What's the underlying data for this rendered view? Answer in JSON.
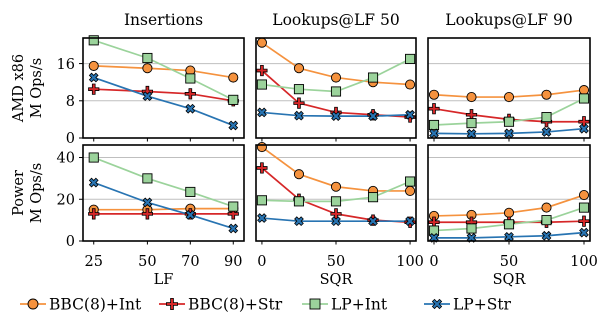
{
  "chart_data": {
    "type": "line",
    "col_titles": [
      "Insertions",
      "Lookups@LF 50",
      "Lookups@LF 90"
    ],
    "row_labels": [
      {
        "line1": "AMD x86",
        "line2": "M Ops/s"
      },
      {
        "line1": "Power",
        "line2": "M Ops/s"
      }
    ],
    "x_axes": [
      {
        "label": "LF",
        "ticks": [
          25,
          50,
          70,
          90
        ],
        "xlim": [
          20,
          95
        ]
      },
      {
        "label": "SQR",
        "ticks": [
          0,
          50,
          100
        ],
        "xlim": [
          -4,
          104
        ]
      },
      {
        "label": "SQR",
        "ticks": [
          0,
          50,
          100
        ],
        "xlim": [
          -4,
          104
        ]
      }
    ],
    "y_axes": [
      {
        "ticks": [
          0,
          8,
          16
        ],
        "ylim": [
          0,
          21.5
        ]
      },
      {
        "ticks": [
          0,
          20,
          40
        ],
        "ylim": [
          0,
          46
        ]
      }
    ],
    "series_meta": [
      {
        "name": "BBC(8)+Int",
        "color": "#f5923e",
        "marker": "circle"
      },
      {
        "name": "BBC(8)+Str",
        "color": "#d62728",
        "marker": "plus"
      },
      {
        "name": "LP+Int",
        "color": "#9bd39b",
        "marker": "square"
      },
      {
        "name": "LP+Str",
        "color": "#2874b2",
        "marker": "x"
      }
    ],
    "panels": [
      {
        "row": 0,
        "col": 0,
        "x": [
          25,
          50,
          70,
          90
        ],
        "series": [
          {
            "name": "BBC(8)+Int",
            "values": [
              15.5,
              15.0,
              14.5,
              13.0
            ]
          },
          {
            "name": "BBC(8)+Str",
            "values": [
              10.5,
              10.0,
              9.5,
              8.0
            ]
          },
          {
            "name": "LP+Int",
            "values": [
              21.0,
              17.2,
              12.8,
              8.2
            ]
          },
          {
            "name": "LP+Str",
            "values": [
              13.0,
              9.0,
              6.3,
              2.7
            ]
          }
        ]
      },
      {
        "row": 0,
        "col": 1,
        "x": [
          0,
          25,
          50,
          75,
          100
        ],
        "series": [
          {
            "name": "BBC(8)+Int",
            "values": [
              20.5,
              15.0,
              13.0,
              12.0,
              11.5
            ]
          },
          {
            "name": "BBC(8)+Str",
            "values": [
              14.5,
              7.5,
              5.5,
              5.0,
              4.5
            ]
          },
          {
            "name": "LP+Int",
            "values": [
              11.5,
              10.5,
              10.0,
              13.0,
              17.0
            ]
          },
          {
            "name": "LP+Str",
            "values": [
              5.5,
              4.8,
              4.7,
              4.7,
              5.0
            ]
          }
        ]
      },
      {
        "row": 0,
        "col": 2,
        "x": [
          0,
          25,
          50,
          75,
          100
        ],
        "series": [
          {
            "name": "BBC(8)+Int",
            "values": [
              9.3,
              8.8,
              8.8,
              9.3,
              10.3
            ]
          },
          {
            "name": "BBC(8)+Str",
            "values": [
              6.3,
              5.0,
              4.0,
              3.5,
              3.5
            ]
          },
          {
            "name": "LP+Int",
            "values": [
              2.8,
              3.2,
              3.5,
              4.5,
              8.5
            ]
          },
          {
            "name": "LP+Str",
            "values": [
              1.0,
              0.9,
              1.0,
              1.3,
              2.0
            ]
          }
        ]
      },
      {
        "row": 1,
        "col": 0,
        "x": [
          25,
          50,
          70,
          90
        ],
        "series": [
          {
            "name": "BBC(8)+Int",
            "values": [
              15.0,
              15.0,
              15.5,
              15.5
            ]
          },
          {
            "name": "BBC(8)+Str",
            "values": [
              13.0,
              13.0,
              13.0,
              13.0
            ]
          },
          {
            "name": "LP+Int",
            "values": [
              40.0,
              30.0,
              23.5,
              16.5
            ]
          },
          {
            "name": "LP+Str",
            "values": [
              28.0,
              18.5,
              12.5,
              6.0
            ]
          }
        ]
      },
      {
        "row": 1,
        "col": 1,
        "x": [
          0,
          25,
          50,
          75,
          100
        ],
        "series": [
          {
            "name": "BBC(8)+Int",
            "values": [
              45.0,
              32.0,
              26.0,
              24.0,
              24.0
            ]
          },
          {
            "name": "BBC(8)+Str",
            "values": [
              35.0,
              20.0,
              13.0,
              10.0,
              9.0
            ]
          },
          {
            "name": "LP+Int",
            "values": [
              19.5,
              19.0,
              19.0,
              21.0,
              28.5
            ]
          },
          {
            "name": "LP+Str",
            "values": [
              11.0,
              9.5,
              9.5,
              9.5,
              9.5
            ]
          }
        ]
      },
      {
        "row": 1,
        "col": 2,
        "x": [
          0,
          25,
          50,
          75,
          100
        ],
        "series": [
          {
            "name": "BBC(8)+Int",
            "values": [
              12.0,
              12.5,
              13.5,
              16.0,
              22.0
            ]
          },
          {
            "name": "BBC(8)+Str",
            "values": [
              9.0,
              9.0,
              9.0,
              9.0,
              9.5
            ]
          },
          {
            "name": "LP+Int",
            "values": [
              5.0,
              6.0,
              8.0,
              10.0,
              16.0
            ]
          },
          {
            "name": "LP+Str",
            "values": [
              1.5,
              1.5,
              2.0,
              2.5,
              4.0
            ]
          }
        ]
      }
    ]
  }
}
